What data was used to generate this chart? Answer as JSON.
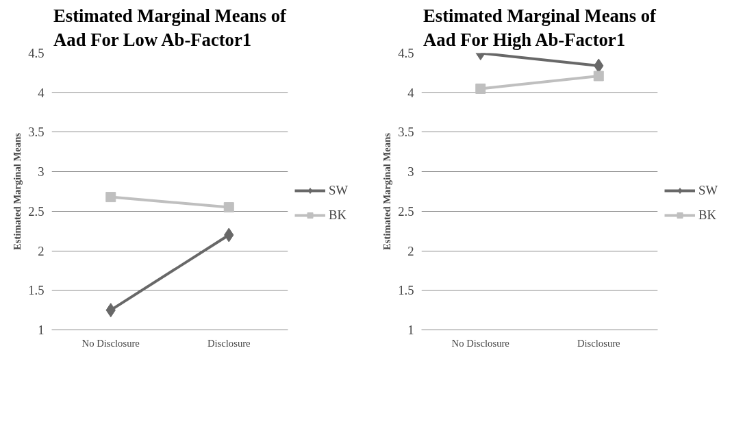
{
  "chart_data": [
    {
      "type": "line",
      "title": "Estimated Marginal Means of Aad For Low Ab-Factor1",
      "ylabel": "Estimated Marginal Means",
      "categories": [
        "No Disclosure",
        "Disclosure"
      ],
      "series": [
        {
          "name": "SW",
          "color": "#686868",
          "values": [
            1.25,
            2.2
          ],
          "marker": "diamond"
        },
        {
          "name": "BK",
          "color": "#bfbfbf",
          "values": [
            2.68,
            2.55
          ],
          "marker": "square"
        }
      ],
      "ylim": [
        1,
        4.5
      ],
      "yticks": [
        1,
        1.5,
        2,
        2.5,
        3,
        3.5,
        4,
        4.5
      ],
      "grid": "y",
      "legend": "right",
      "line_style": "solid"
    },
    {
      "type": "line",
      "title": "Estimated Marginal Means of Aad For High Ab-Factor1",
      "ylabel": "Estimated Marginal Means",
      "categories": [
        "No Disclosure",
        "Disclosure"
      ],
      "series": [
        {
          "name": "SW",
          "color": "#686868",
          "values": [
            4.5,
            4.34
          ],
          "marker": "diamond"
        },
        {
          "name": "BK",
          "color": "#bfbfbf",
          "values": [
            4.05,
            4.21
          ],
          "marker": "square"
        }
      ],
      "ylim": [
        1,
        4.5
      ],
      "yticks": [
        1,
        1.5,
        2,
        2.5,
        3,
        3.5,
        4,
        4.5
      ],
      "grid": "y",
      "legend": "right",
      "line_style": "solid"
    }
  ]
}
